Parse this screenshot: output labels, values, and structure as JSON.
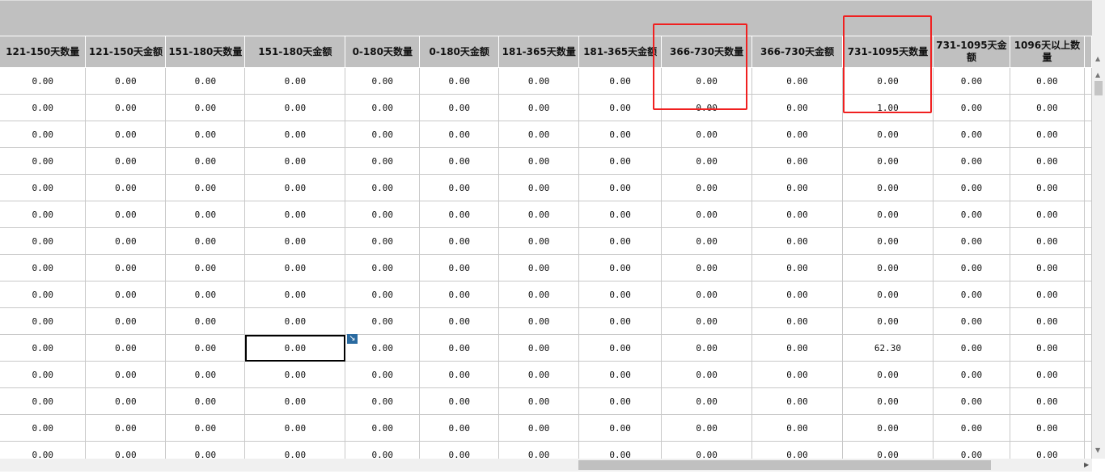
{
  "columns": [
    "121-150天数量",
    "121-150天金额",
    "151-180天数量",
    "151-180天金额",
    "0-180天数量",
    "0-180天金额",
    "181-365天数量",
    "181-365天金额",
    "366-730天数量",
    "366-730天金额",
    "731-1095天数量",
    "731-1095天金额",
    "1096天以上数量"
  ],
  "rows": [
    [
      "0.00",
      "0.00",
      "0.00",
      "0.00",
      "0.00",
      "0.00",
      "0.00",
      "0.00",
      "0.00",
      "0.00",
      "0.00",
      "0.00",
      "0.00"
    ],
    [
      "0.00",
      "0.00",
      "0.00",
      "0.00",
      "0.00",
      "0.00",
      "0.00",
      "0.00",
      "0.00",
      "0.00",
      "1.00",
      "0.00",
      "0.00"
    ],
    [
      "0.00",
      "0.00",
      "0.00",
      "0.00",
      "0.00",
      "0.00",
      "0.00",
      "0.00",
      "0.00",
      "0.00",
      "0.00",
      "0.00",
      "0.00"
    ],
    [
      "0.00",
      "0.00",
      "0.00",
      "0.00",
      "0.00",
      "0.00",
      "0.00",
      "0.00",
      "0.00",
      "0.00",
      "0.00",
      "0.00",
      "0.00"
    ],
    [
      "0.00",
      "0.00",
      "0.00",
      "0.00",
      "0.00",
      "0.00",
      "0.00",
      "0.00",
      "0.00",
      "0.00",
      "0.00",
      "0.00",
      "0.00"
    ],
    [
      "0.00",
      "0.00",
      "0.00",
      "0.00",
      "0.00",
      "0.00",
      "0.00",
      "0.00",
      "0.00",
      "0.00",
      "0.00",
      "0.00",
      "0.00"
    ],
    [
      "0.00",
      "0.00",
      "0.00",
      "0.00",
      "0.00",
      "0.00",
      "0.00",
      "0.00",
      "0.00",
      "0.00",
      "0.00",
      "0.00",
      "0.00"
    ],
    [
      "0.00",
      "0.00",
      "0.00",
      "0.00",
      "0.00",
      "0.00",
      "0.00",
      "0.00",
      "0.00",
      "0.00",
      "0.00",
      "0.00",
      "0.00"
    ],
    [
      "0.00",
      "0.00",
      "0.00",
      "0.00",
      "0.00",
      "0.00",
      "0.00",
      "0.00",
      "0.00",
      "0.00",
      "0.00",
      "0.00",
      "0.00"
    ],
    [
      "0.00",
      "0.00",
      "0.00",
      "0.00",
      "0.00",
      "0.00",
      "0.00",
      "0.00",
      "0.00",
      "0.00",
      "0.00",
      "0.00",
      "0.00"
    ],
    [
      "0.00",
      "0.00",
      "0.00",
      "0.00",
      "0.00",
      "0.00",
      "0.00",
      "0.00",
      "0.00",
      "0.00",
      "62.30",
      "0.00",
      "0.00"
    ],
    [
      "0.00",
      "0.00",
      "0.00",
      "0.00",
      "0.00",
      "0.00",
      "0.00",
      "0.00",
      "0.00",
      "0.00",
      "0.00",
      "0.00",
      "0.00"
    ],
    [
      "0.00",
      "0.00",
      "0.00",
      "0.00",
      "0.00",
      "0.00",
      "0.00",
      "0.00",
      "0.00",
      "0.00",
      "0.00",
      "0.00",
      "0.00"
    ],
    [
      "0.00",
      "0.00",
      "0.00",
      "0.00",
      "0.00",
      "0.00",
      "0.00",
      "0.00",
      "0.00",
      "0.00",
      "0.00",
      "0.00",
      "0.00"
    ],
    [
      "0.00",
      "0.00",
      "0.00",
      "0.00",
      "0.00",
      "0.00",
      "0.00",
      "0.00",
      "0.00",
      "0.00",
      "0.00",
      "0.00",
      "0.00"
    ]
  ],
  "selected_cell": {
    "row": 10,
    "col": 3
  },
  "colors": {
    "header_bg": "#c0c0c0",
    "highlight_box": "#f02020",
    "expand_icon": "#2a6aa0"
  },
  "icons": {
    "expand": "expand-arrow-icon",
    "scroll_up": "triangle-up-icon",
    "scroll_down": "triangle-down-icon",
    "scroll_right": "triangle-right-icon"
  }
}
